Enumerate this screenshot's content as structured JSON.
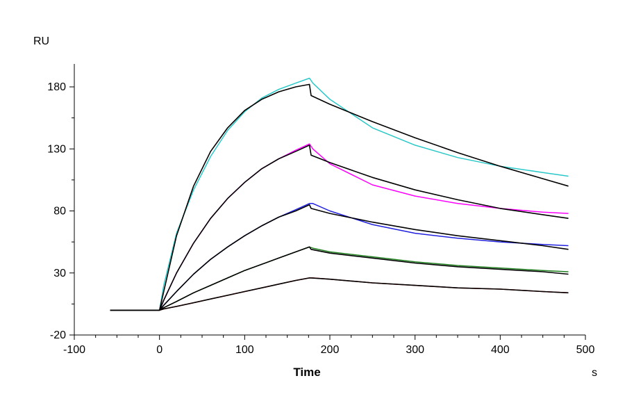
{
  "chart_data": {
    "type": "line",
    "title": "",
    "xlabel": "Time",
    "ylabel": "RU",
    "x_unit": "s",
    "xlim": [
      -100,
      500
    ],
    "ylim": [
      -20,
      200
    ],
    "x_ticks": [
      -100,
      0,
      100,
      200,
      300,
      400,
      500
    ],
    "y_ticks": [
      -20,
      30,
      80,
      130,
      180
    ],
    "grid": false,
    "legend": "none",
    "series": [
      {
        "color": "#2ac8c8",
        "style": "sensorgram",
        "x": [
          -58,
          0,
          5,
          20,
          40,
          60,
          80,
          100,
          120,
          140,
          160,
          176,
          180,
          200,
          250,
          300,
          350,
          400,
          450,
          480
        ],
        "y": [
          0,
          0,
          20,
          62,
          97,
          124,
          145,
          160,
          171,
          178,
          183,
          187,
          183,
          170,
          147,
          133,
          123,
          116,
          111,
          108
        ]
      },
      {
        "color": "#000000",
        "style": "fit",
        "x": [
          -58,
          0,
          5,
          20,
          40,
          60,
          80,
          100,
          120,
          140,
          160,
          176,
          178,
          200,
          250,
          300,
          350,
          400,
          450,
          480
        ],
        "y": [
          0,
          0,
          15,
          60,
          100,
          128,
          147,
          161,
          170,
          176,
          180,
          182,
          173,
          166,
          152,
          139,
          127,
          116,
          106,
          100
        ]
      },
      {
        "color": "#ff00ff",
        "style": "sensorgram",
        "x": [
          -58,
          0,
          5,
          20,
          40,
          60,
          80,
          100,
          120,
          140,
          160,
          176,
          180,
          200,
          250,
          300,
          350,
          400,
          450,
          480
        ],
        "y": [
          0,
          0,
          8,
          30,
          54,
          74,
          90,
          103,
          114,
          122,
          129,
          134,
          130,
          118,
          101,
          92,
          86,
          82,
          79,
          78
        ]
      },
      {
        "color": "#000000",
        "style": "fit",
        "x": [
          -58,
          0,
          5,
          20,
          40,
          60,
          80,
          100,
          120,
          140,
          160,
          176,
          178,
          200,
          250,
          300,
          350,
          400,
          450,
          480
        ],
        "y": [
          0,
          0,
          8,
          30,
          54,
          74,
          90,
          103,
          114,
          122,
          128,
          133,
          125,
          119,
          107,
          97,
          89,
          82,
          77,
          74
        ]
      },
      {
        "color": "#2020e0",
        "style": "sensorgram",
        "x": [
          -58,
          0,
          5,
          20,
          40,
          60,
          80,
          100,
          120,
          140,
          160,
          176,
          180,
          200,
          250,
          300,
          350,
          400,
          450,
          480
        ],
        "y": [
          0,
          0,
          4,
          15,
          29,
          41,
          51,
          60,
          68,
          75,
          81,
          86,
          86,
          80,
          69,
          62,
          58,
          55,
          53,
          52
        ]
      },
      {
        "color": "#000000",
        "style": "fit",
        "x": [
          -58,
          0,
          5,
          20,
          40,
          60,
          80,
          100,
          120,
          140,
          160,
          176,
          178,
          200,
          250,
          300,
          350,
          400,
          450,
          480
        ],
        "y": [
          0,
          0,
          4,
          15,
          29,
          41,
          51,
          60,
          68,
          75,
          80,
          85,
          82,
          78,
          71,
          65,
          60,
          56,
          52,
          49
        ]
      },
      {
        "color": "#208020",
        "style": "sensorgram",
        "x": [
          -58,
          0,
          5,
          20,
          40,
          60,
          80,
          100,
          120,
          140,
          160,
          176,
          180,
          200,
          250,
          300,
          350,
          400,
          450,
          480
        ],
        "y": [
          0,
          0,
          2,
          7,
          14,
          20,
          26,
          32,
          37,
          42,
          47,
          51,
          50,
          47,
          43,
          39,
          36,
          34,
          32,
          31
        ]
      },
      {
        "color": "#000000",
        "style": "fit",
        "x": [
          -58,
          0,
          5,
          20,
          40,
          60,
          80,
          100,
          120,
          140,
          160,
          176,
          178,
          200,
          250,
          300,
          350,
          400,
          450,
          480
        ],
        "y": [
          0,
          0,
          2,
          7,
          14,
          20,
          26,
          32,
          37,
          42,
          47,
          51,
          49,
          46,
          42,
          38,
          35,
          33,
          31,
          29
        ]
      },
      {
        "color": "#c00000",
        "style": "sensorgram",
        "x": [
          -58,
          0,
          5,
          20,
          40,
          60,
          80,
          100,
          120,
          140,
          160,
          176,
          180,
          200,
          250,
          300,
          350,
          400,
          450,
          480
        ],
        "y": [
          0,
          0,
          1,
          3,
          6,
          9,
          12,
          15,
          18,
          21,
          24,
          26,
          26,
          25,
          22,
          20,
          18,
          17,
          15,
          14
        ]
      },
      {
        "color": "#000000",
        "style": "fit",
        "x": [
          -58,
          0,
          5,
          20,
          40,
          60,
          80,
          100,
          120,
          140,
          160,
          176,
          178,
          200,
          250,
          300,
          350,
          400,
          450,
          480
        ],
        "y": [
          0,
          0,
          1,
          3,
          6,
          9,
          12,
          15,
          18,
          21,
          24,
          26,
          26,
          25,
          22,
          20,
          18,
          17,
          15,
          14
        ]
      }
    ]
  }
}
